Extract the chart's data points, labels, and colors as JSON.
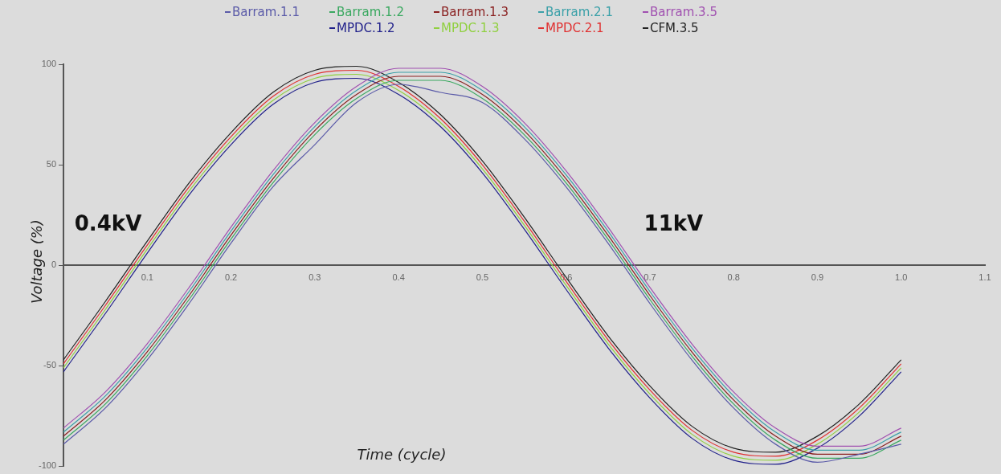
{
  "chart_data": {
    "type": "line",
    "xlabel": "Time (cycle)",
    "ylabel": "Voltage (%)",
    "x": [
      0,
      0.05,
      0.1,
      0.15,
      0.2,
      0.25,
      0.3,
      0.35,
      0.4,
      0.45,
      0.5,
      0.55,
      0.6,
      0.65,
      0.7,
      0.75,
      0.8,
      0.85,
      0.9,
      0.95,
      1.0
    ],
    "series": [
      {
        "name": "Barram.1.1",
        "color": "#5a5aa8",
        "values": [
          -89,
          -71,
          -47,
          -19,
          11,
          39,
          60,
          81,
          90,
          86,
          81,
          63,
          39,
          11,
          -19,
          -47,
          -71,
          -89,
          -98,
          -94,
          -89
        ]
      },
      {
        "name": "Barram.1.2",
        "color": "#3aa860",
        "values": [
          -87,
          -69,
          -45,
          -17,
          13,
          41,
          65,
          83,
          92,
          92,
          83,
          65,
          41,
          13,
          -17,
          -45,
          -69,
          -87,
          -96,
          -96,
          -87
        ]
      },
      {
        "name": "Barram.1.3",
        "color": "#8a2020",
        "values": [
          -85,
          -67,
          -43,
          -15,
          15,
          43,
          67,
          85,
          94,
          94,
          85,
          67,
          43,
          15,
          -15,
          -43,
          -67,
          -85,
          -94,
          -94,
          -85
        ]
      },
      {
        "name": "Barram.2.1",
        "color": "#3aa0a8",
        "values": [
          -83,
          -65,
          -41,
          -13,
          17,
          45,
          69,
          87,
          96,
          96,
          87,
          69,
          45,
          17,
          -13,
          -41,
          -65,
          -83,
          -92,
          -92,
          -83
        ]
      },
      {
        "name": "Barram.3.5",
        "color": "#a050b0",
        "values": [
          -81,
          -63,
          -39,
          -11,
          19,
          47,
          71,
          89,
          98,
          98,
          89,
          71,
          47,
          19,
          -11,
          -39,
          -63,
          -81,
          -90,
          -90,
          -81
        ]
      },
      {
        "name": "MPDC.1.2",
        "color": "#20208a",
        "values": [
          -53,
          -24,
          6,
          35,
          60,
          80,
          91,
          93,
          85,
          69,
          46,
          18,
          -12,
          -41,
          -66,
          -86,
          -97,
          -99,
          -91,
          -75,
          -53
        ]
      },
      {
        "name": "MPDC.1.3",
        "color": "#90d040",
        "values": [
          -51,
          -22,
          8,
          37,
          62,
          82,
          93,
          95,
          87,
          71,
          48,
          20,
          -10,
          -39,
          -64,
          -84,
          -95,
          -97,
          -89,
          -73,
          -51
        ]
      },
      {
        "name": "MPDC.2.1",
        "color": "#e03030",
        "values": [
          -49,
          -20,
          10,
          39,
          64,
          84,
          95,
          97,
          89,
          73,
          50,
          22,
          -8,
          -37,
          -62,
          -82,
          -93,
          -95,
          -87,
          -71,
          -49
        ]
      },
      {
        "name": "CFM.3.5",
        "color": "#222222",
        "values": [
          -47,
          -18,
          12,
          41,
          66,
          86,
          97,
          99,
          91,
          75,
          52,
          24,
          -6,
          -35,
          -60,
          -80,
          -91,
          -93,
          -85,
          -69,
          -47
        ]
      }
    ],
    "xlim": [
      0,
      1.1
    ],
    "xticks": [
      0.1,
      0.2,
      0.3,
      0.4,
      0.5,
      0.6,
      0.7,
      0.8,
      0.9,
      {
        "value": 1.0,
        "label": "1.0"
      },
      1.1
    ],
    "ylim": [
      -100,
      100
    ],
    "yticks": [
      -100,
      -50,
      0,
      50,
      100
    ],
    "grid": false,
    "legend": "top",
    "marker": "none",
    "line_style": "solid",
    "annotations": [
      "0.4kV",
      "11kV"
    ]
  }
}
